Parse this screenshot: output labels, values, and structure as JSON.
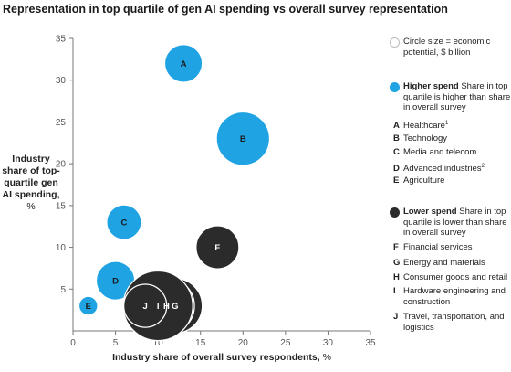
{
  "title": "Representation in top quartile of gen AI spending vs overall survey representation",
  "chart_data": {
    "type": "scatter",
    "xlabel_bold": "Industry share of overall survey respondents,",
    "xlabel_unit": " %",
    "ylabel_bold": "Industry share of top-quartile gen AI spending,",
    "ylabel_unit": "%",
    "xlim": [
      0,
      35
    ],
    "ylim": [
      0,
      35
    ],
    "xticks": [
      "0",
      "5",
      "10",
      "15",
      "20",
      "25",
      "30",
      "35"
    ],
    "yticks": [
      "5",
      "10",
      "15",
      "20",
      "25",
      "30",
      "35"
    ],
    "grid": false,
    "points": [
      {
        "label": "A",
        "x": 13,
        "y": 32,
        "group": "higher",
        "size": 2.0
      },
      {
        "label": "B",
        "x": 20,
        "y": 23,
        "group": "higher",
        "size": 4.0
      },
      {
        "label": "C",
        "x": 6,
        "y": 13,
        "group": "higher",
        "size": 1.7
      },
      {
        "label": "D",
        "x": 5,
        "y": 6,
        "group": "higher",
        "size": 2.1
      },
      {
        "label": "E",
        "x": 1.8,
        "y": 3,
        "group": "higher",
        "size": 0.5
      },
      {
        "label": "F",
        "x": 17,
        "y": 10,
        "group": "lower",
        "size": 2.6
      },
      {
        "label": "G",
        "x": 12,
        "y": 3,
        "group": "lower",
        "size": 4.2
      },
      {
        "label": "H",
        "x": 11,
        "y": 3,
        "group": "lower",
        "size": 4.4
      },
      {
        "label": "I",
        "x": 10,
        "y": 3,
        "group": "lower",
        "size": 6.8
      },
      {
        "label": "J",
        "x": 8.5,
        "y": 3,
        "group": "lower",
        "size": 2.6
      }
    ],
    "colors": {
      "higher": "#1fa3e3",
      "lower": "#2b2b2b",
      "edge": "#ffffff",
      "axis": "#777777"
    }
  },
  "legend": {
    "size_note": "Circle size = economic potential, $ billion",
    "higher": {
      "title": "Higher spend",
      "desc": "Share in top quartile is higher than share in overall survey",
      "items": [
        {
          "letter": "A",
          "name": "Healthcare",
          "sup": "1"
        },
        {
          "letter": "B",
          "name": "Technology",
          "sup": ""
        },
        {
          "letter": "C",
          "name": "Media and telecom",
          "sup": ""
        },
        {
          "letter": "D",
          "name": "Advanced industries",
          "sup": "2"
        },
        {
          "letter": "E",
          "name": "Agriculture",
          "sup": ""
        }
      ]
    },
    "lower": {
      "title": "Lower spend",
      "desc": "Share in top quartile is lower than share in overall survey",
      "items": [
        {
          "letter": "F",
          "name": "Financial services",
          "sup": ""
        },
        {
          "letter": "G",
          "name": "Energy and materials",
          "sup": ""
        },
        {
          "letter": "H",
          "name": "Consumer goods and retail",
          "sup": ""
        },
        {
          "letter": "I",
          "name": "Hardware engineering and construction",
          "sup": ""
        },
        {
          "letter": "J",
          "name": "Travel, transportation, and logistics",
          "sup": ""
        }
      ]
    }
  }
}
